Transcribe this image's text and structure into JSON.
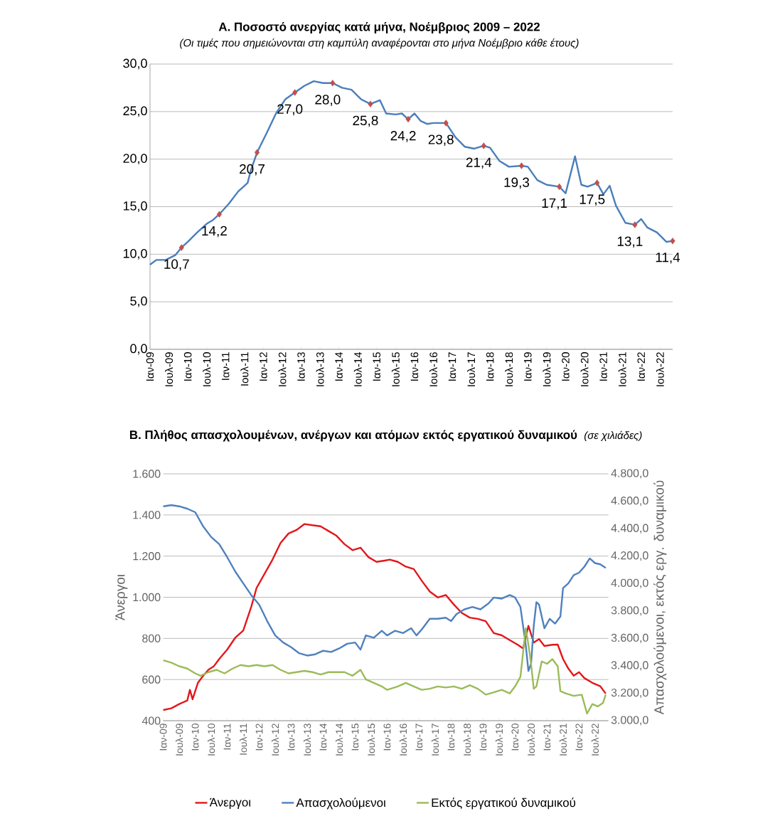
{
  "chart_data": [
    {
      "type": "line",
      "title": "Α. Ποσοστό ανεργίας κατά μήνα, Νοέμβριος 2009 – 2022",
      "subtitle": "(Οι τιμές που σημειώνονται στη καμπύλη αναφέρονται στο μήνα Νοέμβριο κάθε έτους)",
      "xlim": [
        "2009-01",
        "2022-11"
      ],
      "xticks": [
        {
          "value": "2009-01",
          "label": "Ιαν-09"
        },
        {
          "value": "2009-07",
          "label": "Ιουλ-09"
        },
        {
          "value": "2010-01",
          "label": "Ιαν-10"
        },
        {
          "value": "2010-07",
          "label": "Ιουλ-10"
        },
        {
          "value": "2011-01",
          "label": "Ιαν-11"
        },
        {
          "value": "2011-07",
          "label": "Ιουλ-11"
        },
        {
          "value": "2012-01",
          "label": "Ιαν-12"
        },
        {
          "value": "2012-07",
          "label": "Ιουλ-12"
        },
        {
          "value": "2013-01",
          "label": "Ιαν-13"
        },
        {
          "value": "2013-07",
          "label": "Ιουλ-13"
        },
        {
          "value": "2014-01",
          "label": "Ιαν-14"
        },
        {
          "value": "2014-07",
          "label": "Ιουλ-14"
        },
        {
          "value": "2015-01",
          "label": "Ιαν-15"
        },
        {
          "value": "2015-07",
          "label": "Ιουλ-15"
        },
        {
          "value": "2016-01",
          "label": "Ιαν-16"
        },
        {
          "value": "2016-07",
          "label": "Ιουλ-16"
        },
        {
          "value": "2017-01",
          "label": "Ιαν-17"
        },
        {
          "value": "2017-07",
          "label": "Ιουλ-17"
        },
        {
          "value": "2018-01",
          "label": "Ιαν-18"
        },
        {
          "value": "2018-07",
          "label": "Ιουλ-18"
        },
        {
          "value": "2019-01",
          "label": "Ιαν-19"
        },
        {
          "value": "2019-07",
          "label": "Ιουλ-19"
        },
        {
          "value": "2020-01",
          "label": "Ιαν-20"
        },
        {
          "value": "2020-07",
          "label": "Ιουλ-20"
        },
        {
          "value": "2021-01",
          "label": "Ιαν-21"
        },
        {
          "value": "2021-07",
          "label": "Ιουλ-21"
        },
        {
          "value": "2022-01",
          "label": "Ιαν-22"
        },
        {
          "value": "2022-07",
          "label": "Ιουλ-22"
        }
      ],
      "ylim": [
        0,
        30
      ],
      "yticks": [
        {
          "value": 0,
          "label": "0,0"
        },
        {
          "value": 5,
          "label": "5,0"
        },
        {
          "value": 10,
          "label": "10,0"
        },
        {
          "value": 15,
          "label": "15,0"
        },
        {
          "value": 20,
          "label": "20,0"
        },
        {
          "value": 25,
          "label": "25,0"
        },
        {
          "value": 30,
          "label": "30,0"
        }
      ],
      "grid": "y",
      "series": [
        {
          "color": "#4a7ebb",
          "x": [
            "2009-01",
            "2009-03",
            "2009-06",
            "2009-09",
            "2009-11",
            "2010-01",
            "2010-04",
            "2010-07",
            "2010-09",
            "2010-11",
            "2011-02",
            "2011-05",
            "2011-08",
            "2011-09",
            "2011-11",
            "2012-02",
            "2012-05",
            "2012-08",
            "2012-11",
            "2013-02",
            "2013-05",
            "2013-08",
            "2013-11",
            "2014-02",
            "2014-05",
            "2014-08",
            "2014-11",
            "2015-02",
            "2015-04",
            "2015-07",
            "2015-09",
            "2015-11",
            "2016-01",
            "2016-03",
            "2016-05",
            "2016-07",
            "2016-11",
            "2017-02",
            "2017-05",
            "2017-08",
            "2017-11",
            "2018-01",
            "2018-04",
            "2018-07",
            "2018-11",
            "2019-01",
            "2019-04",
            "2019-07",
            "2019-11",
            "2020-01",
            "2020-04",
            "2020-06",
            "2020-08",
            "2020-11",
            "2021-01",
            "2021-03",
            "2021-05",
            "2021-08",
            "2021-11",
            "2022-01",
            "2022-03",
            "2022-06",
            "2022-09",
            "2022-11"
          ],
          "values": [
            8.9,
            9.4,
            9.4,
            9.9,
            10.7,
            11.3,
            12.3,
            13.2,
            13.6,
            14.2,
            15.3,
            16.6,
            17.5,
            18.8,
            20.7,
            22.7,
            24.8,
            26.3,
            27.0,
            27.7,
            28.2,
            28.0,
            28.0,
            27.5,
            27.3,
            26.3,
            25.8,
            26.2,
            24.8,
            24.7,
            24.8,
            24.2,
            24.8,
            24.0,
            23.7,
            23.8,
            23.8,
            22.3,
            21.3,
            21.1,
            21.4,
            21.2,
            19.8,
            19.2,
            19.3,
            19.2,
            17.8,
            17.3,
            17.1,
            16.4,
            20.3,
            17.3,
            17.1,
            17.5,
            16.3,
            17.2,
            15.1,
            13.3,
            13.1,
            13.7,
            12.8,
            12.3,
            11.3,
            11.4
          ]
        },
        {
          "type": "scatter",
          "color": "#c0504d",
          "marker": "diamond",
          "x": [
            "2009-11",
            "2010-11",
            "2011-11",
            "2012-11",
            "2013-11",
            "2014-11",
            "2015-11",
            "2016-11",
            "2017-11",
            "2018-11",
            "2019-11",
            "2020-11",
            "2021-11",
            "2022-11"
          ],
          "values": [
            10.7,
            14.2,
            20.7,
            27.0,
            28.0,
            25.8,
            24.2,
            23.8,
            21.4,
            19.3,
            17.1,
            17.5,
            13.1,
            11.4
          ],
          "value_labels": [
            "10,7",
            "14,2",
            "20,7",
            "27,0",
            "28,0",
            "25,8",
            "24,2",
            "23,8",
            "21,4",
            "19,3",
            "17,1",
            "17,5",
            "13,1",
            "11,4"
          ]
        }
      ]
    },
    {
      "type": "line",
      "title": "Β. Πλήθος απασχολουμένων, ανέργων και ατόμων εκτός εργατικού δυναμικού",
      "subtitle": "(σε χιλιάδες)",
      "ylabel": "Άνεργοι",
      "y2label": "Απασχολούμενοι, εκτός εργ. δυναμικού",
      "xlim": [
        "2009-01",
        "2022-12"
      ],
      "xticks": [
        {
          "value": "2009-01",
          "label": "Ιαν-09"
        },
        {
          "value": "2009-07",
          "label": "Ιουλ-09"
        },
        {
          "value": "2010-01",
          "label": "Ιαν-10"
        },
        {
          "value": "2010-07",
          "label": "Ιουλ-10"
        },
        {
          "value": "2011-01",
          "label": "Ιαν-11"
        },
        {
          "value": "2011-07",
          "label": "Ιουλ-11"
        },
        {
          "value": "2012-01",
          "label": "Ιαν-12"
        },
        {
          "value": "2012-07",
          "label": "Ιουλ-12"
        },
        {
          "value": "2013-01",
          "label": "Ιαν-13"
        },
        {
          "value": "2013-07",
          "label": "Ιουλ-13"
        },
        {
          "value": "2014-01",
          "label": "Ιαν-14"
        },
        {
          "value": "2014-07",
          "label": "Ιουλ-14"
        },
        {
          "value": "2015-01",
          "label": "Ιαν-15"
        },
        {
          "value": "2015-07",
          "label": "Ιουλ-15"
        },
        {
          "value": "2016-01",
          "label": "Ιαν-16"
        },
        {
          "value": "2016-07",
          "label": "Ιουλ-16"
        },
        {
          "value": "2017-01",
          "label": "Ιαν-17"
        },
        {
          "value": "2017-07",
          "label": "Ιουλ-17"
        },
        {
          "value": "2018-01",
          "label": "Ιαν-18"
        },
        {
          "value": "2018-07",
          "label": "Ιουλ-18"
        },
        {
          "value": "2019-01",
          "label": "Ιαν-19"
        },
        {
          "value": "2019-07",
          "label": "Ιουλ-19"
        },
        {
          "value": "2020-01",
          "label": "Ιαν-20"
        },
        {
          "value": "2020-07",
          "label": "Ιουλ-20"
        },
        {
          "value": "2021-01",
          "label": "Ιαν-21"
        },
        {
          "value": "2021-07",
          "label": "Ιουλ-21"
        },
        {
          "value": "2022-01",
          "label": "Ιαν-22"
        },
        {
          "value": "2022-07",
          "label": "Ιουλ-22"
        }
      ],
      "ylim": [
        400,
        1600
      ],
      "yticks": [
        {
          "value": 400,
          "label": "400"
        },
        {
          "value": 600,
          "label": "600"
        },
        {
          "value": 800,
          "label": "800"
        },
        {
          "value": 1000,
          "label": "1.000"
        },
        {
          "value": 1200,
          "label": "1.200"
        },
        {
          "value": 1400,
          "label": "1.400"
        },
        {
          "value": 1600,
          "label": "1.600"
        }
      ],
      "y2lim": [
        3000,
        4800
      ],
      "y2ticks": [
        {
          "value": 3000,
          "label": "3.000,0"
        },
        {
          "value": 3200,
          "label": "3.200,0"
        },
        {
          "value": 3400,
          "label": "3.400,0"
        },
        {
          "value": 3600,
          "label": "3.600,0"
        },
        {
          "value": 3800,
          "label": "3.800,0"
        },
        {
          "value": 4000,
          "label": "4.000,0"
        },
        {
          "value": 4200,
          "label": "4.200,0"
        },
        {
          "value": 4400,
          "label": "4.400,0"
        },
        {
          "value": 4600,
          "label": "4.600,0"
        },
        {
          "value": 4800,
          "label": "4.800,0"
        }
      ],
      "grid": "y",
      "legend": "bottom",
      "series": [
        {
          "name": "Άνεργοι",
          "color": "#e3171b",
          "x": [
            "2009-01",
            "2009-04",
            "2009-07",
            "2009-10",
            "2009-11",
            "2009-12",
            "2010-02",
            "2010-04",
            "2010-06",
            "2010-08",
            "2010-10",
            "2011-01",
            "2011-04",
            "2011-07",
            "2011-10",
            "2011-12",
            "2012-03",
            "2012-06",
            "2012-09",
            "2012-12",
            "2013-03",
            "2013-06",
            "2013-09",
            "2013-12",
            "2014-03",
            "2014-06",
            "2014-09",
            "2014-12",
            "2015-03",
            "2015-06",
            "2015-09",
            "2015-12",
            "2016-02",
            "2016-05",
            "2016-08",
            "2016-11",
            "2017-02",
            "2017-05",
            "2017-08",
            "2017-11",
            "2018-02",
            "2018-05",
            "2018-08",
            "2018-11",
            "2019-02",
            "2019-05",
            "2019-08",
            "2019-11",
            "2020-02",
            "2020-04",
            "2020-06",
            "2020-08",
            "2020-10",
            "2020-12",
            "2021-03",
            "2021-05",
            "2021-07",
            "2021-09",
            "2021-11",
            "2022-01",
            "2022-03",
            "2022-06",
            "2022-09",
            "2022-11"
          ],
          "values": [
            452,
            460,
            481,
            498,
            550,
            504,
            584,
            619,
            648,
            665,
            700,
            746,
            803,
            838,
            953,
            1045,
            1114,
            1183,
            1264,
            1310,
            1327,
            1356,
            1350,
            1345,
            1322,
            1299,
            1258,
            1229,
            1241,
            1195,
            1172,
            1178,
            1183,
            1172,
            1149,
            1137,
            1080,
            1028,
            999,
            1011,
            965,
            924,
            901,
            895,
            884,
            826,
            815,
            792,
            769,
            751,
            861,
            780,
            797,
            763,
            769,
            770,
            700,
            653,
            619,
            636,
            607,
            584,
            567,
            532
          ]
        },
        {
          "name": "Απασχολούμενοι",
          "color": "#4f81bd",
          "axis": "y2",
          "x": [
            "2009-01",
            "2009-04",
            "2009-07",
            "2009-10",
            "2010-01",
            "2010-04",
            "2010-07",
            "2010-10",
            "2011-01",
            "2011-04",
            "2011-07",
            "2011-10",
            "2012-01",
            "2012-04",
            "2012-07",
            "2012-10",
            "2013-01",
            "2013-04",
            "2013-07",
            "2013-10",
            "2014-01",
            "2014-04",
            "2014-07",
            "2014-10",
            "2015-01",
            "2015-03",
            "2015-05",
            "2015-08",
            "2015-11",
            "2016-01",
            "2016-04",
            "2016-07",
            "2016-10",
            "2016-12",
            "2017-02",
            "2017-05",
            "2017-08",
            "2017-11",
            "2018-01",
            "2018-03",
            "2018-06",
            "2018-09",
            "2018-12",
            "2019-03",
            "2019-05",
            "2019-08",
            "2019-11",
            "2020-01",
            "2020-03",
            "2020-05",
            "2020-06",
            "2020-07",
            "2020-08",
            "2020-09",
            "2020-10",
            "2020-12",
            "2021-02",
            "2021-04",
            "2021-06",
            "2021-07",
            "2021-09",
            "2021-11",
            "2022-01",
            "2022-03",
            "2022-05",
            "2022-07",
            "2022-09",
            "2022-11"
          ],
          "values": [
            4563,
            4572,
            4563,
            4546,
            4520,
            4416,
            4339,
            4287,
            4192,
            4088,
            4002,
            3916,
            3846,
            3726,
            3622,
            3570,
            3536,
            3492,
            3475,
            3484,
            3510,
            3501,
            3527,
            3561,
            3570,
            3518,
            3622,
            3605,
            3656,
            3622,
            3656,
            3639,
            3674,
            3622,
            3665,
            3743,
            3743,
            3751,
            3726,
            3777,
            3812,
            3829,
            3812,
            3855,
            3898,
            3890,
            3916,
            3898,
            3829,
            3553,
            3363,
            3415,
            3691,
            3864,
            3846,
            3674,
            3743,
            3708,
            3760,
            3967,
            4002,
            4062,
            4079,
            4123,
            4183,
            4149,
            4140,
            4114
          ]
        },
        {
          "name": "Εκτός εργατικού δυναμικού",
          "color": "#9bbb59",
          "axis": "y2",
          "x": [
            "2009-01",
            "2009-04",
            "2009-07",
            "2009-10",
            "2010-01",
            "2010-03",
            "2010-06",
            "2010-09",
            "2010-12",
            "2011-03",
            "2011-06",
            "2011-09",
            "2011-12",
            "2012-03",
            "2012-06",
            "2012-09",
            "2012-12",
            "2013-03",
            "2013-06",
            "2013-09",
            "2013-12",
            "2014-03",
            "2014-06",
            "2014-09",
            "2014-12",
            "2015-03",
            "2015-05",
            "2015-08",
            "2015-11",
            "2016-01",
            "2016-05",
            "2016-08",
            "2016-11",
            "2017-02",
            "2017-05",
            "2017-08",
            "2017-11",
            "2018-02",
            "2018-05",
            "2018-08",
            "2018-11",
            "2019-02",
            "2019-05",
            "2019-08",
            "2019-11",
            "2020-01",
            "2020-03",
            "2020-05",
            "2020-06",
            "2020-07",
            "2020-08",
            "2020-09",
            "2020-11",
            "2021-01",
            "2021-03",
            "2021-05",
            "2021-06",
            "2021-08",
            "2021-11",
            "2022-02",
            "2022-04",
            "2022-06",
            "2022-08",
            "2022-10",
            "2022-11"
          ],
          "values": [
            3440,
            3423,
            3397,
            3380,
            3345,
            3328,
            3354,
            3371,
            3345,
            3380,
            3406,
            3397,
            3406,
            3397,
            3406,
            3371,
            3345,
            3354,
            3363,
            3354,
            3337,
            3354,
            3354,
            3354,
            3328,
            3371,
            3302,
            3276,
            3250,
            3225,
            3250,
            3276,
            3250,
            3225,
            3233,
            3250,
            3242,
            3250,
            3233,
            3259,
            3233,
            3190,
            3207,
            3225,
            3199,
            3250,
            3320,
            3674,
            3553,
            3415,
            3233,
            3250,
            3432,
            3415,
            3449,
            3397,
            3216,
            3199,
            3181,
            3190,
            3052,
            3121,
            3104,
            3130,
            3190
          ]
        }
      ]
    }
  ]
}
